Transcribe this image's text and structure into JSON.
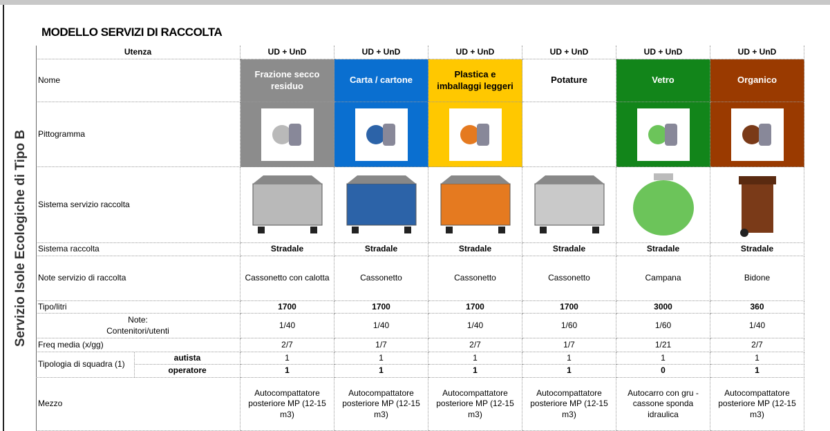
{
  "title": "MODELLO SERVIZI DI RACCOLTA",
  "side_label": "Servizio Isole Ecologiche di Tipo B",
  "row_labels": {
    "utenza": "Utenza",
    "nome": "Nome",
    "pittogramma": "Pittogramma",
    "sistema_servizio": "Sistema servizio raccolta",
    "sistema_raccolta": "Sistema raccolta",
    "note_servizio": "Note servizio di raccolta",
    "tipo": "Tipo/litri",
    "contenitori_note": "Note:",
    "contenitori": "Contenitori/utenti",
    "freq": "Freq media (x/gg)",
    "squadra": "Tipologia di squadra (1)",
    "autista": "autista",
    "operatore": "operatore",
    "mezzo": "Mezzo"
  },
  "columns": [
    {
      "utenza": "UD + UnD",
      "nome": "Frazione secco residuo",
      "sistema_raccolta": "Stradale",
      "note_servizio": "Cassonetto con calotta",
      "tipo": "1700",
      "contenitori": "1/40",
      "freq": "2/7",
      "autista": "1",
      "operatore": "1",
      "mezzo": "Autocompattatore posteriore MP (12-15 m3)"
    },
    {
      "utenza": "UD + UnD",
      "nome": "Carta / cartone",
      "sistema_raccolta": "Stradale",
      "note_servizio": "Cassonetto",
      "tipo": "1700",
      "contenitori": "1/40",
      "freq": "1/7",
      "autista": "1",
      "operatore": "1",
      "mezzo": "Autocompattatore posteriore MP (12-15 m3)"
    },
    {
      "utenza": "UD + UnD",
      "nome": "Plastica e imballaggi leggeri",
      "sistema_raccolta": "Stradale",
      "note_servizio": "Cassonetto",
      "tipo": "1700",
      "contenitori": "1/40",
      "freq": "2/7",
      "autista": "1",
      "operatore": "1",
      "mezzo": "Autocompattatore posteriore MP (12-15 m3)"
    },
    {
      "utenza": "UD + UnD",
      "nome": "Potature",
      "sistema_raccolta": "Stradale",
      "note_servizio": "Cassonetto",
      "tipo": "1700",
      "contenitori": "1/60",
      "freq": "1/7",
      "autista": "1",
      "operatore": "1",
      "mezzo": "Autocompattatore posteriore MP (12-15 m3)"
    },
    {
      "utenza": "UD + UnD",
      "nome": "Vetro",
      "sistema_raccolta": "Stradale",
      "note_servizio": "Campana",
      "tipo": "3000",
      "contenitori": "1/60",
      "freq": "1/21",
      "autista": "1",
      "operatore": "0",
      "mezzo": "Autocarro con gru - cassone sponda idraulica"
    },
    {
      "utenza": "UD + UnD",
      "nome": "Organico",
      "sistema_raccolta": "Stradale",
      "note_servizio": "Bidone",
      "tipo": "360",
      "contenitori": "1/40",
      "freq": "2/7",
      "autista": "1",
      "operatore": "1",
      "mezzo": "Autocompattatore posteriore MP (12-15 m3)"
    }
  ]
}
